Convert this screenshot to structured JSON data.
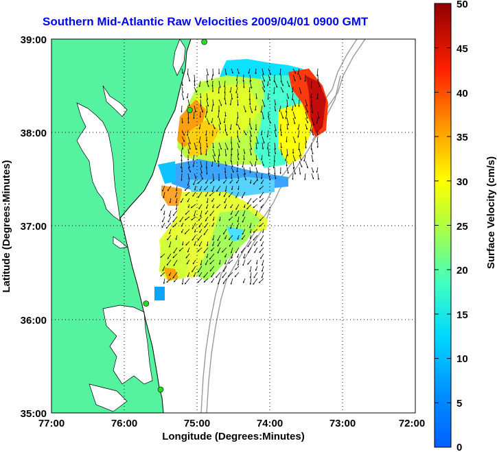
{
  "title": "Southern Mid-Atlantic Raw Velocities 2009/04/01 0900 GMT",
  "axes": {
    "xlabel": "Longitude (Degrees:Minutes)",
    "ylabel": "Latitude (Degrees:Minutes)",
    "x_ticks": [
      "77:00",
      "76:00",
      "75:00",
      "74:00",
      "73:00",
      "72:00"
    ],
    "y_ticks": [
      "39:00",
      "38:00",
      "37:00",
      "36:00",
      "35:00"
    ]
  },
  "colorbar": {
    "label": "Surface Velocity (cm/s)",
    "ticks": [
      "0",
      "5",
      "10",
      "15",
      "20",
      "25",
      "30",
      "35",
      "40",
      "45",
      "50"
    ],
    "range": [
      0,
      50
    ],
    "colormap": "jet"
  },
  "colors": {
    "land": "#55f2a0",
    "title": "#0000ff",
    "station": "#22dd22"
  },
  "chart_data": {
    "type": "vector-field-map",
    "title": "Southern Mid-Atlantic Raw Velocities 2009/04/01 0900 GMT",
    "xlabel": "Longitude (Degrees:Minutes)",
    "ylabel": "Latitude (Degrees:Minutes)",
    "xlim": [
      -77,
      -72
    ],
    "ylim": [
      35,
      39
    ],
    "grid": true,
    "stations": [
      {
        "lon": -74.9,
        "lat": 38.97
      },
      {
        "lon": -75.1,
        "lat": 38.24
      },
      {
        "lon": -75.7,
        "lat": 36.17
      },
      {
        "lon": -75.5,
        "lat": 35.25
      }
    ]
  }
}
